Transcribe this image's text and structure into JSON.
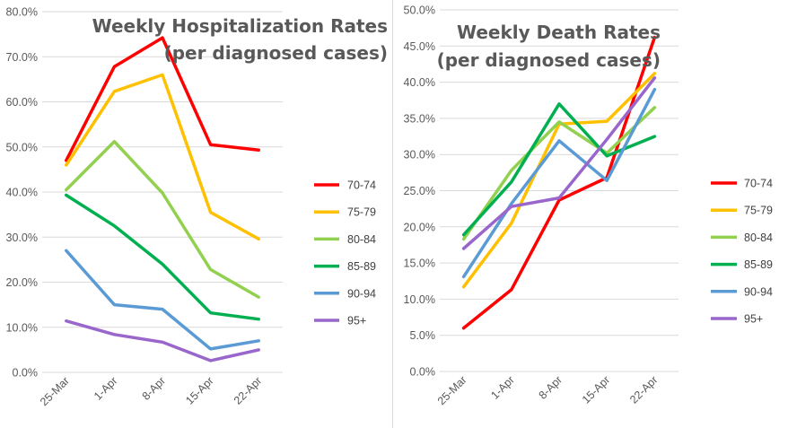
{
  "chart_data": [
    {
      "type": "line",
      "title_lines": [
        "Weekly Hospitalization Rates",
        "(per diagnosed cases)"
      ],
      "categories": [
        "25-Mar",
        "1-Apr",
        "8-Apr",
        "15-Apr",
        "22-Apr"
      ],
      "ylim": [
        0,
        80
      ],
      "yticks": [
        "0.0%",
        "10.0%",
        "20.0%",
        "30.0%",
        "40.0%",
        "50.0%",
        "60.0%",
        "70.0%",
        "80.0%"
      ],
      "series": [
        {
          "name": "70-74",
          "color": "#ff0000",
          "values": [
            47.0,
            67.8,
            74.2,
            50.5,
            49.3
          ]
        },
        {
          "name": "75-79",
          "color": "#ffc000",
          "values": [
            46.0,
            62.3,
            66.0,
            35.5,
            29.6
          ]
        },
        {
          "name": "80-84",
          "color": "#92d050",
          "values": [
            40.5,
            51.2,
            39.8,
            22.8,
            16.7
          ]
        },
        {
          "name": "85-89",
          "color": "#00b050",
          "values": [
            39.3,
            32.5,
            24.0,
            13.2,
            11.8
          ]
        },
        {
          "name": "90-94",
          "color": "#5b9bd5",
          "values": [
            27.0,
            15.0,
            14.0,
            5.2,
            7.0
          ]
        },
        {
          "name": "95+",
          "color": "#9966cc",
          "values": [
            11.4,
            8.4,
            6.7,
            2.6,
            5.0
          ]
        }
      ]
    },
    {
      "type": "line",
      "title_lines": [
        "Weekly Death Rates",
        "(per diagnosed cases)"
      ],
      "categories": [
        "25-Mar",
        "1-Apr",
        "8-Apr",
        "15-Apr",
        "22-Apr"
      ],
      "ylim": [
        0,
        50
      ],
      "yticks": [
        "0.0%",
        "5.0%",
        "10.0%",
        "15.0%",
        "20.0%",
        "25.0%",
        "30.0%",
        "35.0%",
        "40.0%",
        "45.0%",
        "50.0%"
      ],
      "series": [
        {
          "name": "70-74",
          "color": "#ff0000",
          "values": [
            6.0,
            11.3,
            23.7,
            26.8,
            46.2
          ]
        },
        {
          "name": "75-79",
          "color": "#ffc000",
          "values": [
            11.7,
            20.5,
            34.2,
            34.6,
            41.2
          ]
        },
        {
          "name": "80-84",
          "color": "#92d050",
          "values": [
            18.3,
            27.8,
            34.5,
            30.2,
            36.5
          ]
        },
        {
          "name": "85-89",
          "color": "#00b050",
          "values": [
            18.9,
            26.2,
            37.0,
            29.8,
            32.5
          ]
        },
        {
          "name": "90-94",
          "color": "#5b9bd5",
          "values": [
            13.1,
            23.2,
            31.9,
            26.4,
            39.0
          ]
        },
        {
          "name": "95+",
          "color": "#9966cc",
          "values": [
            17.0,
            22.8,
            24.0,
            32.1,
            40.6
          ]
        }
      ]
    }
  ]
}
